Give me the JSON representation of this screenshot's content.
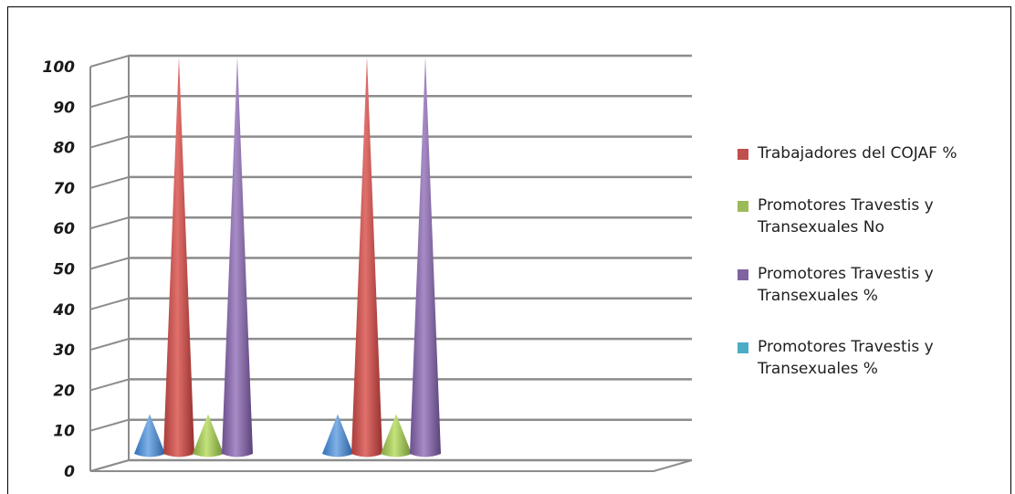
{
  "chart_data": {
    "type": "bar",
    "style": "3d-cone",
    "categories": [
      "",
      ""
    ],
    "series": [
      {
        "values": [
          10,
          10
        ],
        "color": "#4F81BD"
      },
      {
        "name": "Trabajadores del COJAF %",
        "values": [
          100,
          100
        ],
        "color": "#C0504D"
      },
      {
        "name": "Promotores Travestis y Transexuales No",
        "values": [
          10,
          10
        ],
        "color": "#9BBB59"
      },
      {
        "name": "Promotores Travestis y Transexuales %",
        "values": [
          100,
          100
        ],
        "color": "#8064A2"
      }
    ],
    "extra_legend": {
      "name": "Promotores Travestis y Transexuales %",
      "color": "#4BACC6"
    },
    "ylim": [
      0,
      100
    ],
    "yticks": [
      "0",
      "10",
      "20",
      "30",
      "40",
      "50",
      "60",
      "70",
      "80",
      "90",
      "100"
    ],
    "grid": true,
    "legend_position": "right"
  }
}
